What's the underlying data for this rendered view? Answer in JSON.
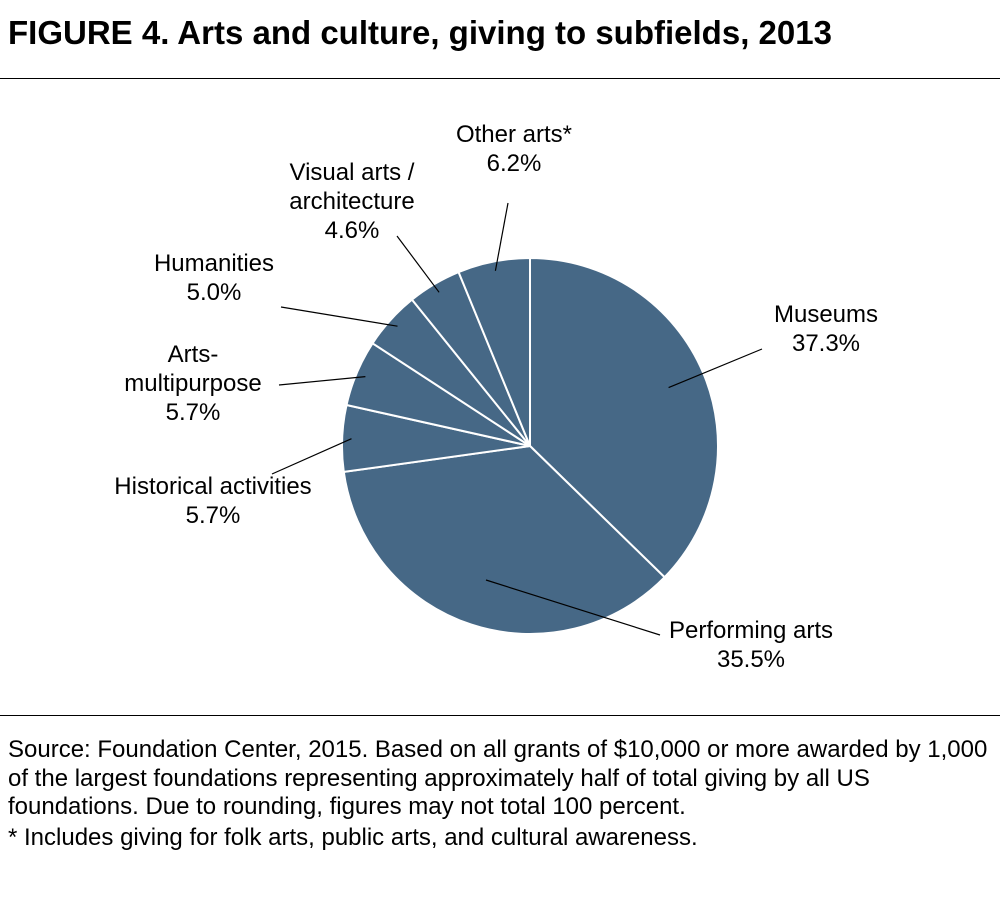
{
  "figure": {
    "title": "FIGURE 4. Arts and culture, giving to subfields, 2013"
  },
  "notes": {
    "source": "Source: Foundation Center, 2015. Based on all grants of $10,000 or more awarded by 1,000 of the largest foundations representing approximately half of total giving by all US foundations. Due to rounding, figures may not total 100 percent.",
    "footnote": "*  Includes giving for folk arts, public arts, and cultural awareness."
  },
  "colors": {
    "slice_fill": "#466886",
    "slice_border": "#ffffff",
    "leader": "#000000"
  },
  "chart_data": {
    "type": "pie",
    "title": "FIGURE 4. Arts and culture, giving to subfields, 2013",
    "start": "12 o'clock",
    "direction": "clockwise",
    "slices": [
      {
        "label": "Museums",
        "value": 37.3,
        "value_label": "37.3%"
      },
      {
        "label": "Performing arts",
        "value": 35.5,
        "value_label": "35.5%"
      },
      {
        "label": "Historical activities",
        "value": 5.7,
        "value_label": "5.7%"
      },
      {
        "label": "Arts-multipurpose",
        "value": 5.7,
        "value_label": "5.7%"
      },
      {
        "label": "Humanities",
        "value": 5.0,
        "value_label": "5.0%"
      },
      {
        "label": "Visual arts / architecture",
        "value": 4.6,
        "value_label": "4.6%"
      },
      {
        "label": "Other arts*",
        "value": 6.2,
        "value_label": "6.2%"
      }
    ],
    "label_lines": [
      [
        "Museums",
        "37.3%"
      ],
      [
        "Performing arts",
        "35.5%"
      ],
      [
        "Historical activities",
        "5.7%"
      ],
      [
        "Arts-",
        "multipurpose",
        "5.7%"
      ],
      [
        "Humanities",
        "5.0%"
      ],
      [
        "Visual arts /",
        "architecture",
        "4.6%"
      ],
      [
        "Other arts*",
        "6.2%"
      ]
    ]
  }
}
